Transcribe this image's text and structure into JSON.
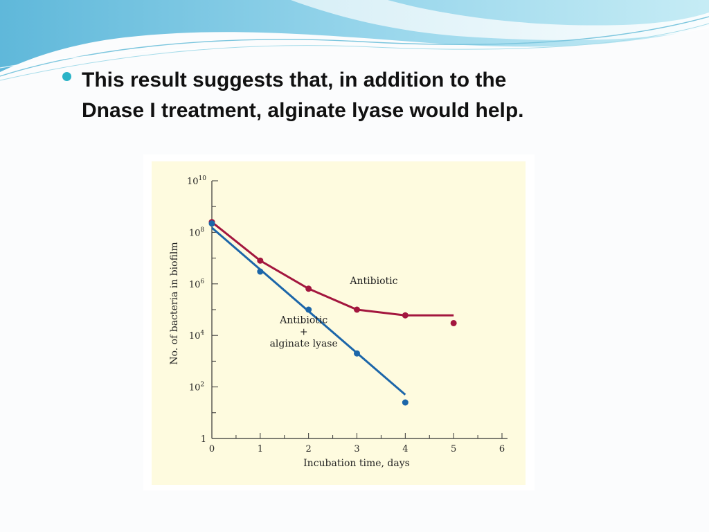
{
  "slide": {
    "bullet_text": "This result suggests that, in addition to the\nDnase I treatment, alginate lyase would help."
  },
  "colors": {
    "chart_background": "#fefbdf",
    "antibiotic": "#a3163e",
    "antibiotic_plus_lyase": "#1c66a9",
    "bullet": "#2ab3c7"
  },
  "chart_data": {
    "type": "line",
    "xlabel": "Incubation time, days",
    "ylabel": "No. of bacteria in biofilm",
    "x_ticks": [
      "0",
      "1",
      "2",
      "3",
      "4",
      "5",
      "6"
    ],
    "y_ticks": [
      {
        "base": "1",
        "exp": ""
      },
      {
        "base": "10",
        "exp": "2"
      },
      {
        "base": "10",
        "exp": "4"
      },
      {
        "base": "10",
        "exp": "6"
      },
      {
        "base": "10",
        "exp": "8"
      },
      {
        "base": "10",
        "exp": "10"
      }
    ],
    "xlim": [
      0,
      6
    ],
    "ylim": [
      1,
      10000000000
    ],
    "y_scale": "log",
    "grid": false,
    "series": [
      {
        "name": "Antibiotic",
        "label_lines": [
          "Antibiotic"
        ],
        "points": [
          {
            "x": 0,
            "y": 250000000
          },
          {
            "x": 1,
            "y": 8000000
          },
          {
            "x": 2,
            "y": 650000
          },
          {
            "x": 3,
            "y": 100000
          },
          {
            "x": 4,
            "y": 60000
          },
          {
            "x": 5,
            "y": 30000
          }
        ],
        "fit_line": [
          {
            "x": 0,
            "y": 250000000
          },
          {
            "x": 1,
            "y": 8000000
          },
          {
            "x": 2,
            "y": 650000
          },
          {
            "x": 3,
            "y": 100000
          },
          {
            "x": 4,
            "y": 60000
          },
          {
            "x": 5,
            "y": 60000
          }
        ]
      },
      {
        "name": "Antibiotic + alginate lyase",
        "label_lines": [
          "Antibiotic",
          "+",
          "alginate lyase"
        ],
        "points": [
          {
            "x": 0,
            "y": 220000000
          },
          {
            "x": 1,
            "y": 3000000
          },
          {
            "x": 2,
            "y": 100000
          },
          {
            "x": 3,
            "y": 2000
          },
          {
            "x": 4,
            "y": 25
          }
        ],
        "fit_line": [
          {
            "x": 0,
            "y": 150000000
          },
          {
            "x": 4,
            "y": 50
          }
        ]
      }
    ]
  }
}
